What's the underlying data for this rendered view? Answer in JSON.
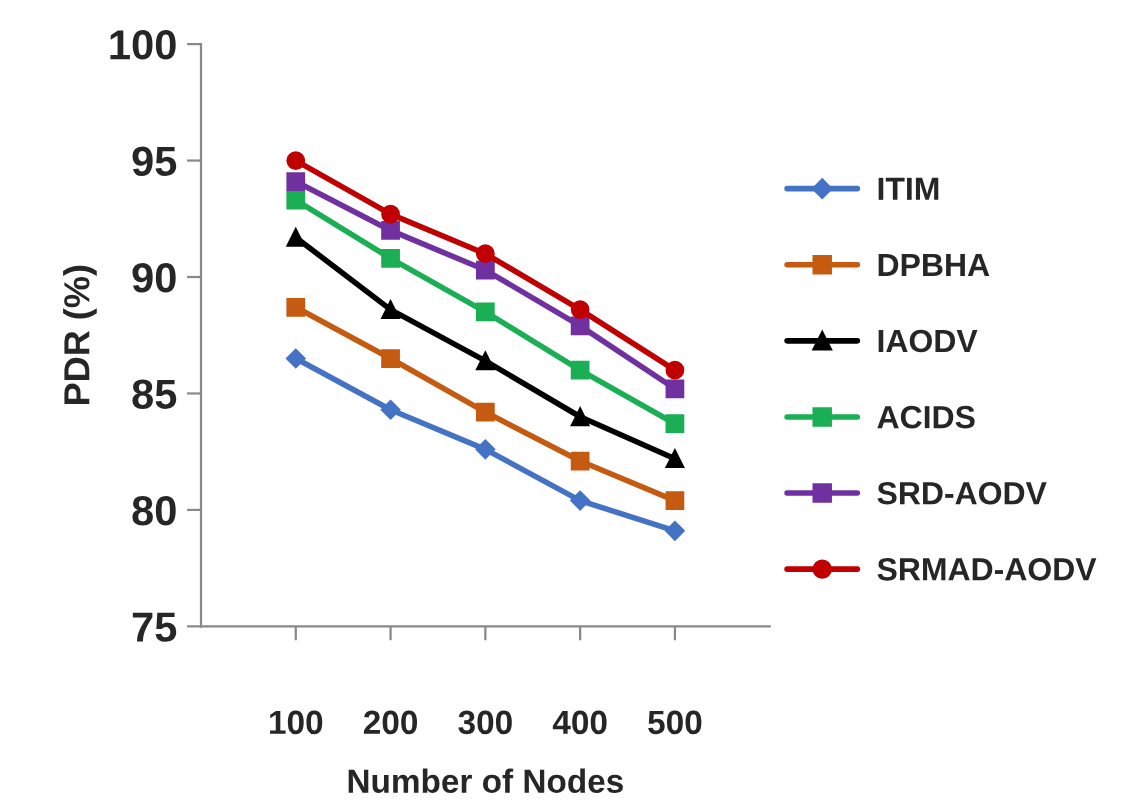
{
  "chart_data": {
    "type": "line",
    "xlabel": "Number of Nodes",
    "ylabel": "PDR (%)",
    "categories": [
      "100",
      "200",
      "300",
      "400",
      "500"
    ],
    "series": [
      {
        "name": "ITIM",
        "color": "#4472c4",
        "marker": "diamond",
        "values": [
          86.5,
          84.3,
          82.6,
          80.4,
          79.1
        ]
      },
      {
        "name": "DPBHA",
        "color": "#c55a11",
        "marker": "square",
        "values": [
          88.7,
          86.5,
          84.2,
          82.1,
          80.4
        ]
      },
      {
        "name": "IAODV",
        "color": "#000000",
        "marker": "triangle",
        "values": [
          91.7,
          88.6,
          86.4,
          84.0,
          82.2
        ]
      },
      {
        "name": "ACIDS",
        "color": "#1aaf54",
        "marker": "square",
        "values": [
          93.3,
          90.8,
          88.5,
          86.0,
          83.7
        ]
      },
      {
        "name": "SRD-AODV",
        "color": "#7030a0",
        "marker": "square",
        "values": [
          94.1,
          92.0,
          90.3,
          87.9,
          85.2
        ]
      },
      {
        "name": "SRMAD-AODV",
        "color": "#c00000",
        "marker": "circle",
        "values": [
          95.0,
          92.7,
          91.0,
          88.6,
          86.0
        ]
      }
    ],
    "ylim": [
      75,
      100
    ],
    "yticks": [
      75,
      80,
      85,
      90,
      95,
      100
    ],
    "grid": false,
    "legend": "right",
    "line_style": "solid"
  }
}
